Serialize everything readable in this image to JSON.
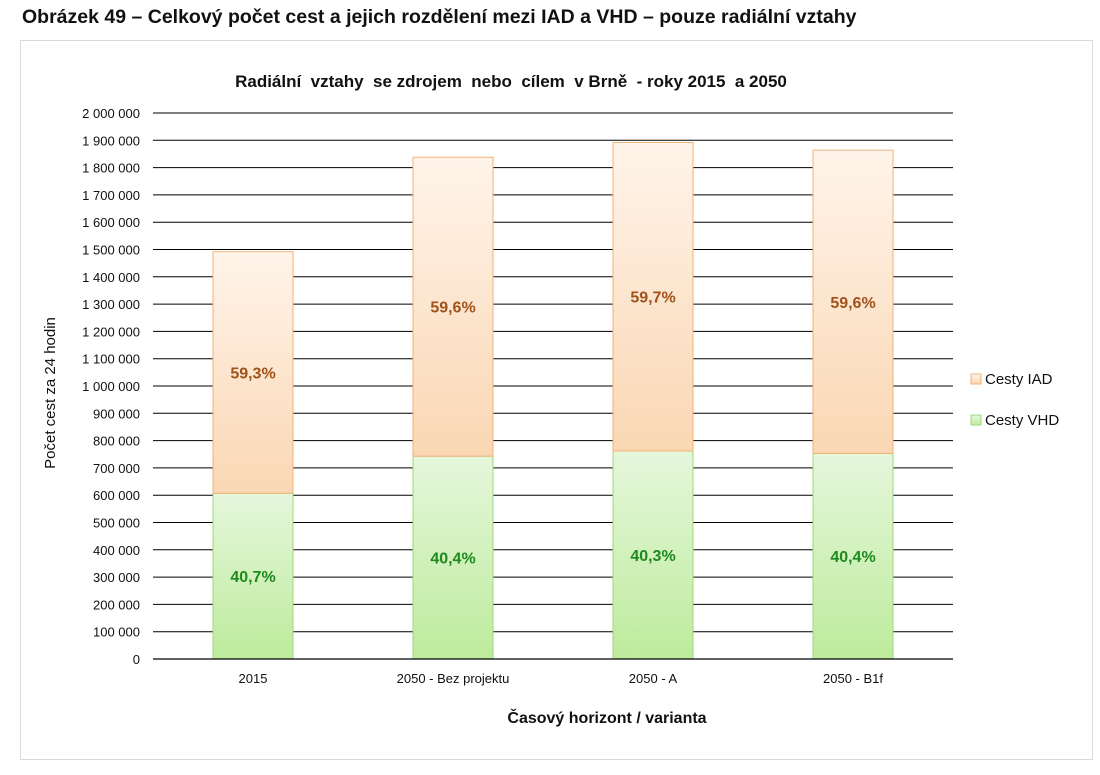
{
  "figure": {
    "caption": "Obrázek 49 – Celkový počet cest a jejich rozdělení mezi IAD a VHD – pouze radiální vztahy"
  },
  "chart_data": {
    "type": "bar",
    "stacked": true,
    "title": "Radiální  vztahy  se zdrojem  nebo  cílem  v Brně  - roky 2015  a 2050",
    "xlabel": "Časový horizont / varianta",
    "ylabel": "Počet cest za 24 hodin",
    "ylim": [
      0,
      2000000
    ],
    "ytick_step": 100000,
    "yticks": [
      "0",
      "100 000",
      "200 000",
      "300 000",
      "400 000",
      "500 000",
      "600 000",
      "700 000",
      "800 000",
      "900 000",
      "1 000 000",
      "1 100 000",
      "1 200 000",
      "1 300 000",
      "1 400 000",
      "1 500 000",
      "1 600 000",
      "1 700 000",
      "1 800 000",
      "1 900 000",
      "2 000 000"
    ],
    "grid": true,
    "legend_position": "right",
    "categories": [
      "2015",
      "2050 - Bez projektu",
      "2050 - A",
      "2050 - B1f"
    ],
    "series": [
      {
        "name": "Cesty VHD",
        "values": [
          607000,
          743000,
          762000,
          753000
        ],
        "labels": [
          "40,7%",
          "40,4%",
          "40,3%",
          "40,4%"
        ],
        "color_top": "#e6f7dc",
        "color_bottom": "#bdeb9c",
        "border_color": "#9fd67a",
        "label_color": "#1e8a1e"
      },
      {
        "name": "Cesty IAD",
        "values": [
          885000,
          1095000,
          1130000,
          1111000
        ],
        "labels": [
          "59,3%",
          "59,6%",
          "59,7%",
          "59,6%"
        ],
        "color_top": "#fff4ea",
        "color_bottom": "#fad7b3",
        "border_color": "#f0b27a",
        "label_color": "#a0521a"
      }
    ],
    "legend_order": [
      "Cesty IAD",
      "Cesty VHD"
    ]
  }
}
